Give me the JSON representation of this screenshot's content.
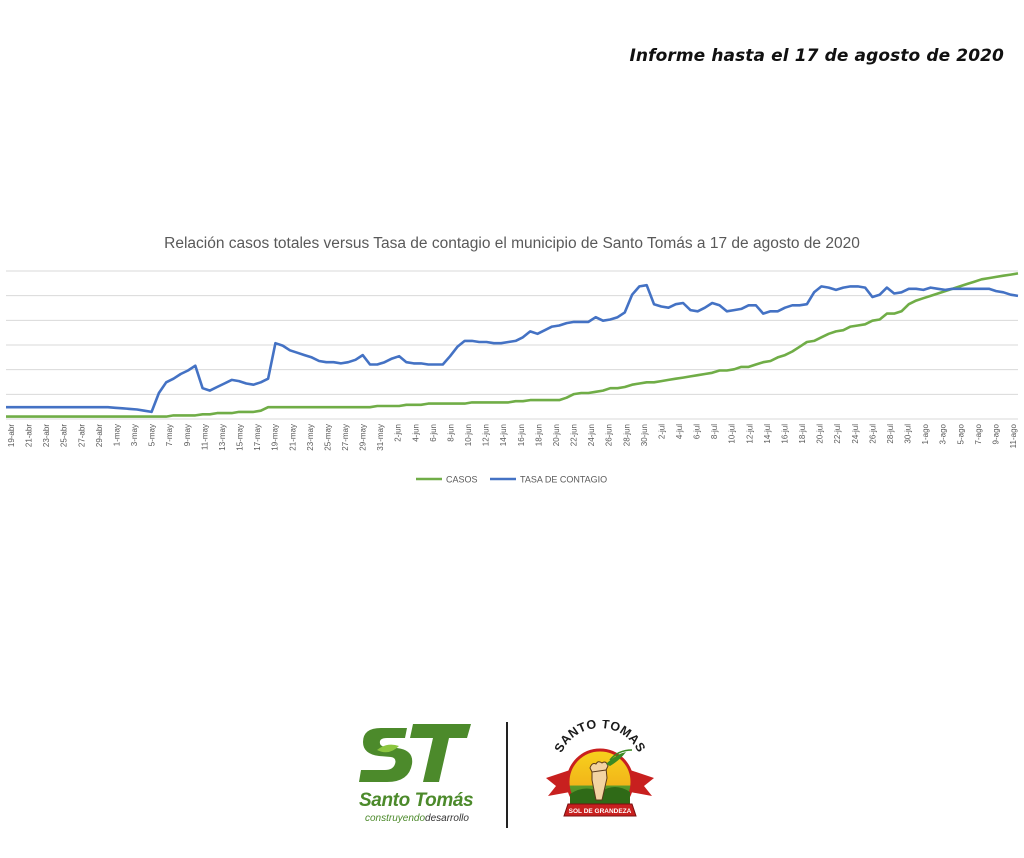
{
  "header": {
    "report_date": "Informe hasta el 17 de agosto de 2020"
  },
  "logos": {
    "municipal_brand": {
      "monogram": "ST",
      "name": "Santo Tomás",
      "tagline_green": "construyendo",
      "tagline_dark": "desarrollo"
    },
    "seal": {
      "top_text": "SANTO TOMAS",
      "ribbon_text": "SOL DE GRANDEZA"
    }
  },
  "colors": {
    "casos": "#70ad47",
    "tasa": "#4472c4",
    "grid": "#d9d9d9",
    "brand_green": "#4c8a2b"
  },
  "chart_data": {
    "type": "line",
    "title": "Relación casos totales versus Tasa de contagio el municipio de Santo Tomás a 17 de agosto de 2020",
    "x_tick_labels": [
      "19-abr",
      "21-abr",
      "23-abr",
      "25-abr",
      "27-abr",
      "29-abr",
      "1-may",
      "3-may",
      "5-may",
      "7-may",
      "9-may",
      "11-may",
      "13-may",
      "15-may",
      "17-may",
      "19-may",
      "21-may",
      "23-may",
      "25-may",
      "27-may",
      "29-may",
      "31-may",
      "2-jun",
      "4-jun",
      "6-jun",
      "8-jun",
      "10-jun",
      "12-jun",
      "14-jun",
      "16-jun",
      "18-jun",
      "20-jun",
      "22-jun",
      "24-jun",
      "26-jun",
      "28-jun",
      "30-jun",
      "2-jul",
      "4-jul",
      "6-jul",
      "8-jul",
      "10-jul",
      "12-jul",
      "14-jul",
      "16-jul",
      "18-jul",
      "20-jul",
      "22-jul",
      "24-jul",
      "26-jul",
      "28-jul",
      "30-jul",
      "1-ago",
      "3-ago",
      "5-ago",
      "7-ago",
      "9-ago",
      "11-ago"
    ],
    "y_gridlines": 7,
    "legend_position": "bottom",
    "series": [
      {
        "name": "CASOS",
        "color": "#70ad47",
        "values": [
          0.2,
          0.2,
          0.2,
          0.2,
          0.2,
          0.2,
          0.2,
          0.2,
          0.2,
          0.2,
          0.2,
          0.2,
          0.2,
          0.2,
          0.2,
          0.2,
          0.2,
          0.2,
          0.2,
          0.2,
          0.2,
          0.2,
          0.2,
          0.3,
          0.3,
          0.3,
          0.3,
          0.4,
          0.4,
          0.5,
          0.5,
          0.5,
          0.6,
          0.6,
          0.6,
          0.7,
          1.0,
          1.0,
          1.0,
          1.0,
          1.0,
          1.0,
          1.0,
          1.0,
          1.0,
          1.0,
          1.0,
          1.0,
          1.0,
          1.0,
          1.0,
          1.1,
          1.1,
          1.1,
          1.1,
          1.2,
          1.2,
          1.2,
          1.3,
          1.3,
          1.3,
          1.3,
          1.3,
          1.3,
          1.4,
          1.4,
          1.4,
          1.4,
          1.4,
          1.4,
          1.5,
          1.5,
          1.6,
          1.6,
          1.6,
          1.6,
          1.6,
          1.8,
          2.1,
          2.2,
          2.2,
          2.3,
          2.4,
          2.6,
          2.6,
          2.7,
          2.9,
          3.0,
          3.1,
          3.1,
          3.2,
          3.3,
          3.4,
          3.5,
          3.6,
          3.7,
          3.8,
          3.9,
          4.1,
          4.1,
          4.2,
          4.4,
          4.4,
          4.6,
          4.8,
          4.9,
          5.2,
          5.4,
          5.7,
          6.1,
          6.5,
          6.6,
          6.9,
          7.2,
          7.4,
          7.5,
          7.8,
          7.9,
          8.0,
          8.3,
          8.4,
          8.9,
          8.9,
          9.1,
          9.7,
          10.0,
          10.2,
          10.4,
          10.6,
          10.8,
          11.0,
          11.2,
          11.4,
          11.6,
          11.8,
          11.9,
          12.0,
          12.1,
          12.2,
          12.3
        ]
      },
      {
        "name": "TASA DE CONTAGIO",
        "color": "#4472c4",
        "values": [
          1.0,
          1.0,
          1.0,
          1.0,
          1.0,
          1.0,
          1.0,
          1.0,
          1.0,
          1.0,
          1.0,
          1.0,
          1.0,
          1.0,
          1.0,
          0.95,
          0.9,
          0.85,
          0.8,
          0.7,
          0.6,
          2.2,
          3.1,
          3.4,
          3.8,
          4.1,
          4.5,
          2.6,
          2.4,
          2.7,
          3.0,
          3.3,
          3.2,
          3.0,
          2.9,
          3.1,
          3.4,
          6.4,
          6.2,
          5.8,
          5.6,
          5.4,
          5.2,
          4.9,
          4.8,
          4.8,
          4.7,
          4.8,
          5.0,
          5.4,
          4.6,
          4.6,
          4.8,
          5.1,
          5.3,
          4.8,
          4.7,
          4.7,
          4.6,
          4.6,
          4.6,
          5.3,
          6.1,
          6.6,
          6.6,
          6.5,
          6.5,
          6.4,
          6.4,
          6.5,
          6.6,
          6.9,
          7.4,
          7.2,
          7.5,
          7.8,
          7.9,
          8.1,
          8.2,
          8.2,
          8.2,
          8.6,
          8.3,
          8.4,
          8.6,
          9.0,
          10.5,
          11.2,
          11.3,
          9.7,
          9.5,
          9.4,
          9.7,
          9.8,
          9.2,
          9.1,
          9.4,
          9.8,
          9.6,
          9.1,
          9.2,
          9.3,
          9.6,
          9.6,
          8.9,
          9.1,
          9.1,
          9.4,
          9.6,
          9.6,
          9.7,
          10.7,
          11.2,
          11.1,
          10.9,
          11.1,
          11.2,
          11.2,
          11.1,
          10.3,
          10.5,
          11.1,
          10.6,
          10.7,
          11.0,
          11.0,
          10.9,
          11.1,
          11.0,
          10.9,
          11.0,
          11.0,
          11.0,
          11.0,
          11.0,
          11.0,
          10.8,
          10.7,
          10.5,
          10.4
        ]
      }
    ]
  }
}
